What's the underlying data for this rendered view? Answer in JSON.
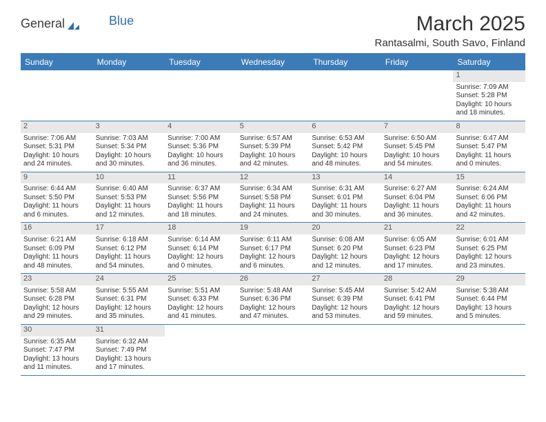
{
  "logo": {
    "text1": "General",
    "text2": "Blue"
  },
  "title": "March 2025",
  "location": "Rantasalmi, South Savo, Finland",
  "day_names": [
    "Sunday",
    "Monday",
    "Tuesday",
    "Wednesday",
    "Thursday",
    "Friday",
    "Saturday"
  ],
  "colors": {
    "header_bg": "#3b7cb8",
    "date_bar_bg": "#e8e8e8",
    "text": "#333333",
    "header_text": "#ffffff"
  },
  "weeks": [
    [
      {
        "date": "",
        "empty": true
      },
      {
        "date": "",
        "empty": true
      },
      {
        "date": "",
        "empty": true
      },
      {
        "date": "",
        "empty": true
      },
      {
        "date": "",
        "empty": true
      },
      {
        "date": "",
        "empty": true
      },
      {
        "date": "1",
        "sunrise": "Sunrise: 7:09 AM",
        "sunset": "Sunset: 5:28 PM",
        "daylight": "Daylight: 10 hours and 18 minutes."
      }
    ],
    [
      {
        "date": "2",
        "sunrise": "Sunrise: 7:06 AM",
        "sunset": "Sunset: 5:31 PM",
        "daylight": "Daylight: 10 hours and 24 minutes."
      },
      {
        "date": "3",
        "sunrise": "Sunrise: 7:03 AM",
        "sunset": "Sunset: 5:34 PM",
        "daylight": "Daylight: 10 hours and 30 minutes."
      },
      {
        "date": "4",
        "sunrise": "Sunrise: 7:00 AM",
        "sunset": "Sunset: 5:36 PM",
        "daylight": "Daylight: 10 hours and 36 minutes."
      },
      {
        "date": "5",
        "sunrise": "Sunrise: 6:57 AM",
        "sunset": "Sunset: 5:39 PM",
        "daylight": "Daylight: 10 hours and 42 minutes."
      },
      {
        "date": "6",
        "sunrise": "Sunrise: 6:53 AM",
        "sunset": "Sunset: 5:42 PM",
        "daylight": "Daylight: 10 hours and 48 minutes."
      },
      {
        "date": "7",
        "sunrise": "Sunrise: 6:50 AM",
        "sunset": "Sunset: 5:45 PM",
        "daylight": "Daylight: 10 hours and 54 minutes."
      },
      {
        "date": "8",
        "sunrise": "Sunrise: 6:47 AM",
        "sunset": "Sunset: 5:47 PM",
        "daylight": "Daylight: 11 hours and 0 minutes."
      }
    ],
    [
      {
        "date": "9",
        "sunrise": "Sunrise: 6:44 AM",
        "sunset": "Sunset: 5:50 PM",
        "daylight": "Daylight: 11 hours and 6 minutes."
      },
      {
        "date": "10",
        "sunrise": "Sunrise: 6:40 AM",
        "sunset": "Sunset: 5:53 PM",
        "daylight": "Daylight: 11 hours and 12 minutes."
      },
      {
        "date": "11",
        "sunrise": "Sunrise: 6:37 AM",
        "sunset": "Sunset: 5:56 PM",
        "daylight": "Daylight: 11 hours and 18 minutes."
      },
      {
        "date": "12",
        "sunrise": "Sunrise: 6:34 AM",
        "sunset": "Sunset: 5:58 PM",
        "daylight": "Daylight: 11 hours and 24 minutes."
      },
      {
        "date": "13",
        "sunrise": "Sunrise: 6:31 AM",
        "sunset": "Sunset: 6:01 PM",
        "daylight": "Daylight: 11 hours and 30 minutes."
      },
      {
        "date": "14",
        "sunrise": "Sunrise: 6:27 AM",
        "sunset": "Sunset: 6:04 PM",
        "daylight": "Daylight: 11 hours and 36 minutes."
      },
      {
        "date": "15",
        "sunrise": "Sunrise: 6:24 AM",
        "sunset": "Sunset: 6:06 PM",
        "daylight": "Daylight: 11 hours and 42 minutes."
      }
    ],
    [
      {
        "date": "16",
        "sunrise": "Sunrise: 6:21 AM",
        "sunset": "Sunset: 6:09 PM",
        "daylight": "Daylight: 11 hours and 48 minutes."
      },
      {
        "date": "17",
        "sunrise": "Sunrise: 6:18 AM",
        "sunset": "Sunset: 6:12 PM",
        "daylight": "Daylight: 11 hours and 54 minutes."
      },
      {
        "date": "18",
        "sunrise": "Sunrise: 6:14 AM",
        "sunset": "Sunset: 6:14 PM",
        "daylight": "Daylight: 12 hours and 0 minutes."
      },
      {
        "date": "19",
        "sunrise": "Sunrise: 6:11 AM",
        "sunset": "Sunset: 6:17 PM",
        "daylight": "Daylight: 12 hours and 6 minutes."
      },
      {
        "date": "20",
        "sunrise": "Sunrise: 6:08 AM",
        "sunset": "Sunset: 6:20 PM",
        "daylight": "Daylight: 12 hours and 12 minutes."
      },
      {
        "date": "21",
        "sunrise": "Sunrise: 6:05 AM",
        "sunset": "Sunset: 6:23 PM",
        "daylight": "Daylight: 12 hours and 17 minutes."
      },
      {
        "date": "22",
        "sunrise": "Sunrise: 6:01 AM",
        "sunset": "Sunset: 6:25 PM",
        "daylight": "Daylight: 12 hours and 23 minutes."
      }
    ],
    [
      {
        "date": "23",
        "sunrise": "Sunrise: 5:58 AM",
        "sunset": "Sunset: 6:28 PM",
        "daylight": "Daylight: 12 hours and 29 minutes."
      },
      {
        "date": "24",
        "sunrise": "Sunrise: 5:55 AM",
        "sunset": "Sunset: 6:31 PM",
        "daylight": "Daylight: 12 hours and 35 minutes."
      },
      {
        "date": "25",
        "sunrise": "Sunrise: 5:51 AM",
        "sunset": "Sunset: 6:33 PM",
        "daylight": "Daylight: 12 hours and 41 minutes."
      },
      {
        "date": "26",
        "sunrise": "Sunrise: 5:48 AM",
        "sunset": "Sunset: 6:36 PM",
        "daylight": "Daylight: 12 hours and 47 minutes."
      },
      {
        "date": "27",
        "sunrise": "Sunrise: 5:45 AM",
        "sunset": "Sunset: 6:39 PM",
        "daylight": "Daylight: 12 hours and 53 minutes."
      },
      {
        "date": "28",
        "sunrise": "Sunrise: 5:42 AM",
        "sunset": "Sunset: 6:41 PM",
        "daylight": "Daylight: 12 hours and 59 minutes."
      },
      {
        "date": "29",
        "sunrise": "Sunrise: 5:38 AM",
        "sunset": "Sunset: 6:44 PM",
        "daylight": "Daylight: 13 hours and 5 minutes."
      }
    ],
    [
      {
        "date": "30",
        "sunrise": "Sunrise: 6:35 AM",
        "sunset": "Sunset: 7:47 PM",
        "daylight": "Daylight: 13 hours and 11 minutes."
      },
      {
        "date": "31",
        "sunrise": "Sunrise: 6:32 AM",
        "sunset": "Sunset: 7:49 PM",
        "daylight": "Daylight: 13 hours and 17 minutes."
      },
      {
        "date": "",
        "empty": true
      },
      {
        "date": "",
        "empty": true
      },
      {
        "date": "",
        "empty": true
      },
      {
        "date": "",
        "empty": true
      },
      {
        "date": "",
        "empty": true
      }
    ]
  ]
}
